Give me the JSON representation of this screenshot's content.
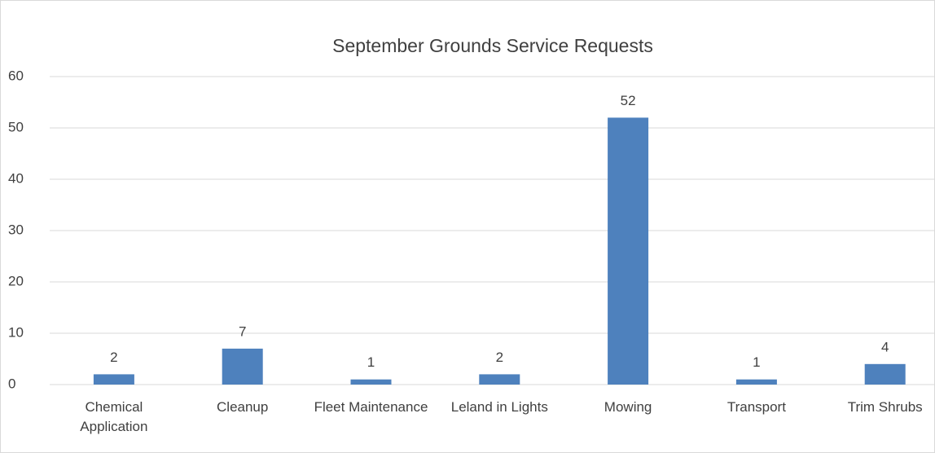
{
  "chart_data": {
    "type": "bar",
    "title": "September Grounds Service Requests",
    "categories": [
      "Chemical Application",
      "Cleanup",
      "Fleet Maintenance",
      "Leland in Lights",
      "Mowing",
      "Transport",
      "Trim Shrubs"
    ],
    "values": [
      2,
      7,
      1,
      2,
      52,
      1,
      4
    ],
    "color": "#4e81bd",
    "ylim": [
      0,
      60
    ],
    "yticks": [
      0,
      10,
      20,
      30,
      40,
      50,
      60
    ],
    "grid": true
  }
}
